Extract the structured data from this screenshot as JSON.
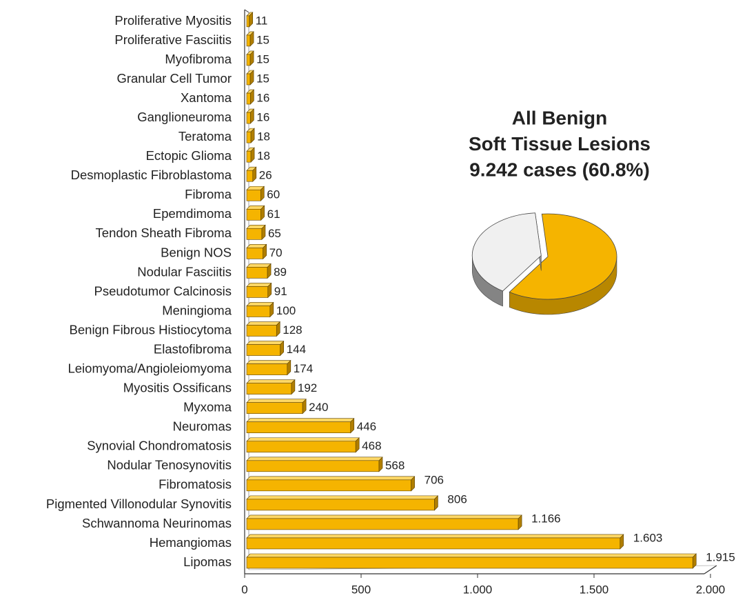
{
  "chart_data": [
    {
      "type": "bar",
      "categories": [
        "Lipomas",
        "Hemangiomas",
        "Schwannoma Neurinomas",
        "Pigmented Villonodular Synovitis",
        "Fibromatosis",
        "Nodular Tenosynovitis",
        "Synovial Chondromatosis",
        "Neuromas",
        "Myxoma",
        "Myositis Ossificans",
        "Leiomyoma/Angioleiomyoma",
        "Elastofibroma",
        "Benign Fibrous Histiocytoma",
        "Meningioma",
        "Pseudotumor Calcinosis",
        "Nodular Fasciitis",
        "Benign NOS",
        "Tendon Sheath Fibroma",
        "Epemdimoma",
        "Fibroma",
        "Desmoplastic Fibroblastoma",
        "Ectopic Glioma",
        "Teratoma",
        "Ganglioneuroma",
        "Xantoma",
        "Granular Cell Tumor",
        "Myofibroma",
        "Proliferative Fasciitis",
        "Proliferative Myositis"
      ],
      "values": [
        1915,
        1603,
        1166,
        806,
        706,
        568,
        468,
        446,
        240,
        192,
        174,
        144,
        128,
        100,
        91,
        89,
        70,
        65,
        61,
        60,
        26,
        18,
        18,
        16,
        16,
        15,
        15,
        15,
        11
      ],
      "value_labels": [
        "1.915",
        "1.603",
        "1.166",
        "806",
        "706",
        "568",
        "468",
        "446",
        "240",
        "192",
        "174",
        "144",
        "128",
        "100",
        "91",
        "89",
        "70",
        "65",
        "61",
        "60",
        "26",
        "18",
        "18",
        "16",
        "16",
        "15",
        "15",
        "15",
        "11"
      ],
      "color": "#f5b400",
      "xlim": [
        0,
        2000
      ],
      "xticks": [
        0,
        500,
        {
          "value": 1000,
          "label": "1.000"
        },
        {
          "value": 1500,
          "label": "1.500"
        },
        {
          "value": 2000,
          "label": "2.000"
        }
      ]
    },
    {
      "type": "pie",
      "title": [
        "All Benign",
        "Soft Tissue Lesions",
        "9.242 cases (60.8%)"
      ],
      "values": [
        60.8,
        39.2
      ],
      "colors": [
        "#f5b400",
        "#f0f0f0"
      ]
    }
  ]
}
